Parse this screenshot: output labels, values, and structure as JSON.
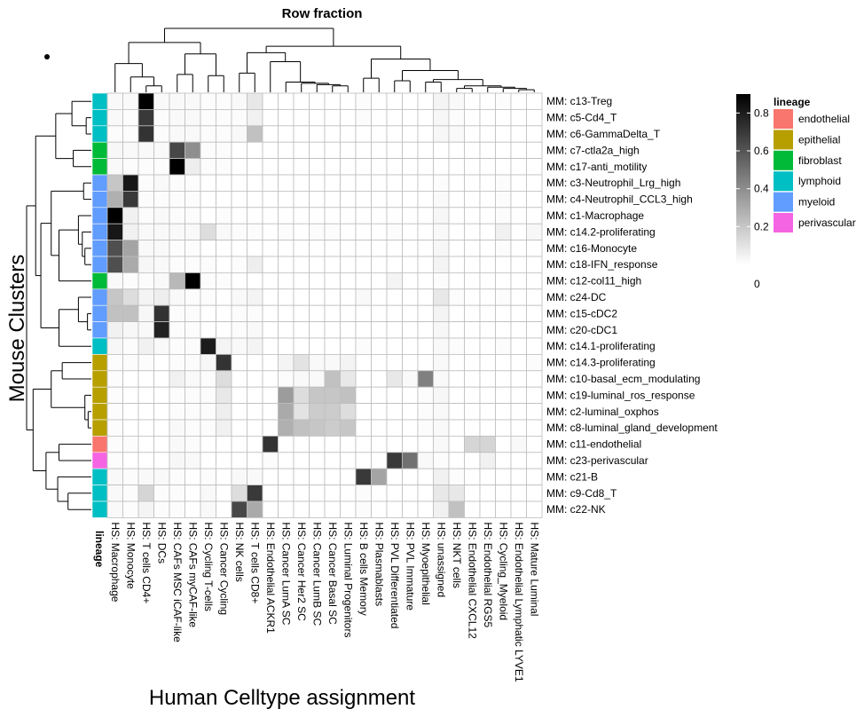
{
  "chart_data": {
    "type": "heatmap",
    "title": "Row fraction",
    "xlabel": "Human Celltype assignment",
    "ylabel": "Mouse Clusters",
    "lineage_label": "lineage",
    "legend_title": "lineage",
    "colorbar": {
      "min": 0,
      "max": 0.9,
      "ticks": [
        0,
        0.2,
        0.4,
        0.6,
        0.8
      ],
      "tick_labels": [
        "0",
        "0.2",
        "0.4",
        "0.6",
        "0.8"
      ],
      "low_color": "#ffffff",
      "high_color": "#000000"
    },
    "lineages": [
      {
        "name": "endothelial",
        "color": "#F8766D"
      },
      {
        "name": "epithelial",
        "color": "#B79F00"
      },
      {
        "name": "fibroblast",
        "color": "#00BA38"
      },
      {
        "name": "lymphoid",
        "color": "#00BFC4"
      },
      {
        "name": "myeloid",
        "color": "#619CFF"
      },
      {
        "name": "perivascular",
        "color": "#F564E3"
      }
    ],
    "rows": [
      {
        "label": "MM: c13-Treg",
        "lineage": "lymphoid"
      },
      {
        "label": "MM: c5-Cd4_T",
        "lineage": "lymphoid"
      },
      {
        "label": "MM: c6-GammaDelta_T",
        "lineage": "lymphoid"
      },
      {
        "label": "MM: c7-ctla2a_high",
        "lineage": "fibroblast"
      },
      {
        "label": "MM: c17-anti_motility",
        "lineage": "fibroblast"
      },
      {
        "label": "MM: c3-Neutrophil_Lrg_high",
        "lineage": "myeloid"
      },
      {
        "label": "MM: c4-Neutrophil_CCL3_high",
        "lineage": "myeloid"
      },
      {
        "label": "MM: c1-Macrophage",
        "lineage": "myeloid"
      },
      {
        "label": "MM: c14.2-proliferating",
        "lineage": "myeloid"
      },
      {
        "label": "MM: c16-Monocyte",
        "lineage": "myeloid"
      },
      {
        "label": "MM: c18-IFN_response",
        "lineage": "myeloid"
      },
      {
        "label": "MM: c12-col11_high",
        "lineage": "fibroblast"
      },
      {
        "label": "MM: c24-DC",
        "lineage": "myeloid"
      },
      {
        "label": "MM: c15-cDC2",
        "lineage": "myeloid"
      },
      {
        "label": "MM: c20-cDC1",
        "lineage": "myeloid"
      },
      {
        "label": "MM: c14.1-proliferating",
        "lineage": "lymphoid"
      },
      {
        "label": "MM: c14.3-proliferating",
        "lineage": "epithelial"
      },
      {
        "label": "MM: c10-basal_ecm_modulating",
        "lineage": "epithelial"
      },
      {
        "label": "MM: c19-luminal_ros_response",
        "lineage": "epithelial"
      },
      {
        "label": "MM: c2-luminal_oxphos",
        "lineage": "epithelial"
      },
      {
        "label": "MM: c8-luminal_gland_development",
        "lineage": "epithelial"
      },
      {
        "label": "MM: c11-endothelial",
        "lineage": "endothelial"
      },
      {
        "label": "MM: c23-perivascular",
        "lineage": "perivascular"
      },
      {
        "label": "MM: c21-B",
        "lineage": "lymphoid"
      },
      {
        "label": "MM: c9-Cd8_T",
        "lineage": "lymphoid"
      },
      {
        "label": "MM: c22-NK",
        "lineage": "lymphoid"
      }
    ],
    "columns": [
      "HS: Macrophage",
      "HS: Monocyte",
      "HS: T cells CD4+",
      "HS: DCs",
      "HS: CAFs MSC iCAF-like",
      "HS: CAFs myCAF-like",
      "HS: Cycling T-cells",
      "HS: Cancer Cycling",
      "HS: NK cells",
      "HS: T cells CD8+",
      "HS: Endothelial ACKR1",
      "HS: Cancer LumA SC",
      "HS: Cancer Her2 SC",
      "HS: Cancer LumB SC",
      "HS: Cancer Basal SC",
      "HS: Luminal Progenitors",
      "HS: B cells Memory",
      "HS: Plasmablasts",
      "HS: PVL Differentiated",
      "HS: PVL Immature",
      "HS: Myoepithelial",
      "HS: unassigned",
      "HS: NKT cells",
      "HS: Endothelial CXCL12",
      "HS: Endothelial RGS5",
      "HS: Cycling_Myeloid",
      "HS: Endothelial Lymphatic LYVE1",
      "HS: Mature Luminal"
    ],
    "values": [
      [
        0.02,
        0.02,
        0.9,
        0.02,
        0.02,
        0.02,
        0.01,
        0.01,
        0.02,
        0.08,
        0,
        0,
        0,
        0,
        0,
        0,
        0.01,
        0,
        0,
        0,
        0,
        0.04,
        0.02,
        0,
        0,
        0.01,
        0,
        0
      ],
      [
        0.02,
        0.01,
        0.7,
        0.01,
        0.02,
        0.02,
        0.01,
        0.01,
        0.01,
        0.05,
        0,
        0,
        0,
        0,
        0,
        0,
        0.01,
        0,
        0,
        0,
        0,
        0.03,
        0.01,
        0,
        0,
        0,
        0,
        0
      ],
      [
        0.01,
        0.01,
        0.72,
        0.01,
        0.02,
        0.02,
        0.01,
        0.01,
        0.02,
        0.22,
        0,
        0,
        0,
        0,
        0,
        0,
        0,
        0,
        0,
        0,
        0,
        0.03,
        0.02,
        0,
        0,
        0,
        0,
        0
      ],
      [
        0.03,
        0.02,
        0.02,
        0.02,
        0.65,
        0.4,
        0.01,
        0.01,
        0,
        0,
        0,
        0,
        0,
        0,
        0,
        0,
        0,
        0,
        0,
        0,
        0,
        0,
        0,
        0,
        0,
        0,
        0,
        0
      ],
      [
        0.02,
        0.01,
        0.01,
        0.01,
        0.92,
        0.06,
        0.01,
        0.01,
        0,
        0,
        0,
        0,
        0,
        0,
        0,
        0,
        0,
        0,
        0,
        0,
        0,
        0,
        0,
        0,
        0,
        0,
        0,
        0
      ],
      [
        0.2,
        0.82,
        0.01,
        0.02,
        0.01,
        0.01,
        0,
        0,
        0,
        0,
        0,
        0,
        0,
        0,
        0,
        0,
        0,
        0,
        0,
        0,
        0,
        0.01,
        0,
        0,
        0,
        0.01,
        0,
        0
      ],
      [
        0.28,
        0.7,
        0.01,
        0.01,
        0.01,
        0.01,
        0,
        0,
        0,
        0,
        0,
        0,
        0,
        0,
        0,
        0,
        0,
        0,
        0,
        0,
        0,
        0.02,
        0,
        0,
        0,
        0.01,
        0,
        0
      ],
      [
        0.92,
        0.05,
        0.01,
        0.02,
        0.01,
        0.01,
        0,
        0.01,
        0,
        0,
        0,
        0,
        0,
        0,
        0,
        0,
        0,
        0,
        0,
        0,
        0,
        0.03,
        0,
        0,
        0,
        0.01,
        0,
        0
      ],
      [
        0.82,
        0.05,
        0.02,
        0.02,
        0.02,
        0.02,
        0.12,
        0.02,
        0.01,
        0.01,
        0,
        0.01,
        0,
        0.01,
        0.01,
        0,
        0,
        0,
        0.01,
        0,
        0,
        0.02,
        0,
        0,
        0,
        0.05,
        0,
        0.03
      ],
      [
        0.62,
        0.32,
        0.02,
        0.02,
        0.01,
        0.01,
        0,
        0,
        0,
        0,
        0,
        0,
        0,
        0,
        0,
        0,
        0,
        0,
        0,
        0,
        0,
        0.03,
        0,
        0,
        0,
        0.01,
        0,
        0
      ],
      [
        0.62,
        0.3,
        0.03,
        0.02,
        0.01,
        0.01,
        0.01,
        0,
        0.01,
        0.06,
        0,
        0,
        0,
        0,
        0,
        0,
        0,
        0,
        0,
        0,
        0,
        0.04,
        0,
        0,
        0,
        0,
        0,
        0
      ],
      [
        0.02,
        0.01,
        0.01,
        0.02,
        0.25,
        0.92,
        0.01,
        0.01,
        0,
        0,
        0,
        0,
        0,
        0,
        0,
        0,
        0,
        0,
        0.04,
        0,
        0,
        0.01,
        0,
        0,
        0,
        0,
        0,
        0
      ],
      [
        0.2,
        0.12,
        0.04,
        0.06,
        0.02,
        0.01,
        0.01,
        0,
        0.02,
        0.04,
        0,
        0,
        0,
        0,
        0,
        0,
        0.02,
        0,
        0,
        0,
        0,
        0.08,
        0.01,
        0,
        0,
        0.01,
        0,
        0
      ],
      [
        0.22,
        0.22,
        0.03,
        0.72,
        0.01,
        0.01,
        0,
        0,
        0.01,
        0.01,
        0,
        0,
        0,
        0,
        0,
        0,
        0,
        0,
        0,
        0,
        0,
        0.04,
        0,
        0,
        0,
        0,
        0,
        0
      ],
      [
        0.05,
        0.03,
        0.02,
        0.78,
        0.01,
        0.01,
        0,
        0,
        0.01,
        0.02,
        0,
        0,
        0,
        0,
        0,
        0,
        0,
        0,
        0,
        0,
        0,
        0.03,
        0,
        0,
        0,
        0,
        0,
        0
      ],
      [
        0.03,
        0.01,
        0.05,
        0.02,
        0.01,
        0.01,
        0.8,
        0.04,
        0.02,
        0.04,
        0,
        0,
        0,
        0,
        0,
        0,
        0.01,
        0,
        0,
        0,
        0,
        0.02,
        0.01,
        0,
        0,
        0.01,
        0,
        0
      ],
      [
        0.01,
        0.01,
        0.01,
        0,
        0.01,
        0.01,
        0.03,
        0.72,
        0,
        0,
        0,
        0.04,
        0.1,
        0.02,
        0.02,
        0.04,
        0,
        0,
        0,
        0,
        0,
        0.02,
        0,
        0,
        0,
        0,
        0,
        0.01
      ],
      [
        0.01,
        0,
        0,
        0,
        0.05,
        0.02,
        0.01,
        0.12,
        0,
        0,
        0,
        0.01,
        0.02,
        0.02,
        0.22,
        0.08,
        0,
        0,
        0.08,
        0.02,
        0.45,
        0.02,
        0,
        0,
        0,
        0,
        0,
        0
      ],
      [
        0.01,
        0,
        0,
        0,
        0.01,
        0.01,
        0.01,
        0.08,
        0,
        0,
        0,
        0.35,
        0.12,
        0.2,
        0.2,
        0.22,
        0,
        0,
        0,
        0,
        0.01,
        0.03,
        0,
        0,
        0,
        0,
        0,
        0
      ],
      [
        0.01,
        0,
        0,
        0,
        0.01,
        0.01,
        0.01,
        0.06,
        0,
        0,
        0,
        0.3,
        0.1,
        0.18,
        0.18,
        0.12,
        0,
        0,
        0,
        0,
        0.01,
        0.02,
        0,
        0,
        0,
        0,
        0,
        0
      ],
      [
        0.01,
        0,
        0,
        0,
        0.02,
        0.01,
        0.01,
        0.05,
        0,
        0,
        0,
        0.28,
        0.22,
        0.2,
        0.18,
        0.2,
        0,
        0,
        0,
        0,
        0.01,
        0.02,
        0,
        0,
        0,
        0,
        0,
        0
      ],
      [
        0.01,
        0.01,
        0,
        0,
        0.02,
        0.01,
        0,
        0,
        0,
        0,
        0.72,
        0,
        0,
        0,
        0,
        0,
        0,
        0,
        0,
        0,
        0,
        0.02,
        0,
        0.15,
        0.15,
        0,
        0.02,
        0
      ],
      [
        0.01,
        0,
        0,
        0,
        0.03,
        0.02,
        0,
        0,
        0,
        0,
        0.01,
        0,
        0,
        0,
        0,
        0,
        0,
        0,
        0.7,
        0.5,
        0.02,
        0.01,
        0,
        0,
        0.05,
        0,
        0,
        0
      ],
      [
        0.02,
        0.01,
        0.02,
        0.02,
        0.01,
        0,
        0.01,
        0,
        0.02,
        0.02,
        0,
        0,
        0,
        0,
        0,
        0,
        0.7,
        0.32,
        0,
        0,
        0,
        0.05,
        0.01,
        0,
        0,
        0,
        0,
        0
      ],
      [
        0.02,
        0.01,
        0.15,
        0.01,
        0.01,
        0,
        0.02,
        0,
        0.12,
        0.7,
        0,
        0,
        0,
        0,
        0,
        0,
        0.01,
        0,
        0,
        0,
        0,
        0.08,
        0.08,
        0,
        0,
        0,
        0,
        0
      ],
      [
        0.02,
        0.01,
        0.04,
        0.01,
        0.01,
        0,
        0.02,
        0,
        0.65,
        0.3,
        0,
        0,
        0,
        0,
        0,
        0,
        0.01,
        0,
        0,
        0,
        0,
        0.05,
        0.22,
        0,
        0,
        0,
        0,
        0
      ]
    ]
  }
}
